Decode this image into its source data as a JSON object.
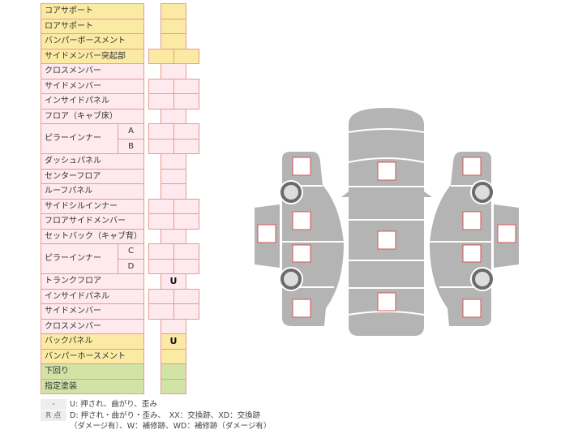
{
  "colors": {
    "yellow": "#fbeaa3",
    "pink": "#fde9ee",
    "green": "#d2e3a6",
    "border": "#e49d8f",
    "body": "#b4b4b4",
    "check_box": "#d9534f"
  },
  "rows": [
    {
      "label": "コアサポート",
      "color": "yellow",
      "cells": "single",
      "values": [
        ""
      ]
    },
    {
      "label": "ロアサポート",
      "color": "yellow",
      "cells": "single",
      "values": [
        ""
      ]
    },
    {
      "label": "バンパーボースメント",
      "color": "yellow",
      "cells": "single",
      "values": [
        ""
      ]
    },
    {
      "label": "サイドメンバー突起部",
      "color": "yellow",
      "cells": "double",
      "values": [
        "",
        ""
      ]
    },
    {
      "label": "クロスメンバー",
      "color": "pink",
      "cells": "single",
      "values": [
        ""
      ]
    },
    {
      "label": "サイドメンバー",
      "color": "pink",
      "cells": "double",
      "values": [
        "",
        ""
      ]
    },
    {
      "label": "インサイドパネル",
      "color": "pink",
      "cells": "double",
      "values": [
        "",
        ""
      ]
    },
    {
      "label": "フロア（キャブ床）",
      "color": "pink",
      "cells": "single",
      "values": [
        ""
      ]
    },
    {
      "label": "ピラーインナー",
      "color": "pink",
      "cells": "double",
      "subs": [
        {
          "sub": "A",
          "values": [
            "",
            ""
          ]
        },
        {
          "sub": "B",
          "values": [
            "",
            ""
          ]
        }
      ]
    },
    {
      "label": "ダッシュパネル",
      "color": "pink",
      "cells": "single",
      "values": [
        ""
      ]
    },
    {
      "label": "センターフロア",
      "color": "pink",
      "cells": "single",
      "values": [
        ""
      ]
    },
    {
      "label": "ルーフパネル",
      "color": "pink",
      "cells": "single",
      "values": [
        ""
      ]
    },
    {
      "label": "サイドシルインナー",
      "color": "pink",
      "cells": "double",
      "values": [
        "",
        ""
      ]
    },
    {
      "label": "フロアサイドメンバー",
      "color": "pink",
      "cells": "double",
      "values": [
        "",
        ""
      ]
    },
    {
      "label": "セットバック（キャブ背）",
      "color": "pink",
      "cells": "single",
      "values": [
        ""
      ]
    },
    {
      "label": "ピラーインナー",
      "color": "pink",
      "cells": "double",
      "subs": [
        {
          "sub": "C",
          "values": [
            "",
            ""
          ]
        },
        {
          "sub": "D",
          "values": [
            "",
            ""
          ]
        }
      ]
    },
    {
      "label": "トランクフロア",
      "color": "pink",
      "cells": "single",
      "values": [
        "U"
      ]
    },
    {
      "label": "インサイドパネル",
      "color": "pink",
      "cells": "double",
      "values": [
        "",
        ""
      ]
    },
    {
      "label": "サイドメンバー",
      "color": "pink",
      "cells": "double",
      "values": [
        "",
        ""
      ]
    },
    {
      "label": "クロスメンバー",
      "color": "pink",
      "cells": "single",
      "values": [
        ""
      ]
    },
    {
      "label": "バックパネル",
      "color": "yellow",
      "cells": "single",
      "values": [
        "U"
      ]
    },
    {
      "label": "バンパーホースメント",
      "color": "yellow",
      "cells": "single",
      "values": [
        ""
      ]
    },
    {
      "label": "下回り",
      "color": "green",
      "cells": "single",
      "values": [
        ""
      ]
    },
    {
      "label": "指定塗装",
      "color": "green",
      "cells": "single",
      "values": [
        ""
      ]
    }
  ],
  "legend": [
    {
      "key": "-",
      "text": "U: 押され、曲がり、歪み"
    },
    {
      "key": "R 点",
      "text": "D: 押され・曲がり・歪み、　XX：交換跡、XD：交換跡"
    },
    {
      "key": "",
      "text": "（ダメージ有）、W：補修跡、WD：補修跡（ダメージ有）"
    }
  ]
}
